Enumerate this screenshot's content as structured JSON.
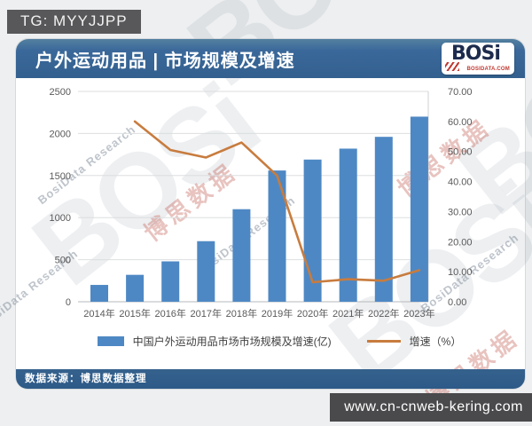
{
  "badges": {
    "tg": "TG: MYYJJPP",
    "site": "www.cn-cnweb-kering.com"
  },
  "header": {
    "title": "户外运动用品 | 市场规模及增速",
    "logo": {
      "text": "BOSi",
      "sub": "BOSIDATA.COM"
    }
  },
  "footer": {
    "source": "数据来源：博思数据整理"
  },
  "watermark": {
    "brand": "BOSi",
    "cn": "博思数据",
    "en": "BosiData Research"
  },
  "chart_data": {
    "type": "bar",
    "subtype": "bar+line dual axis",
    "title": "户外运动用品 | 市场规模及增速",
    "categories": [
      "2014年",
      "2015年",
      "2016年",
      "2017年",
      "2018年",
      "2019年",
      "2020年",
      "2021年",
      "2022年",
      "2023年"
    ],
    "series": [
      {
        "name": "中国户外运动用品市场市场规模及增速(亿)",
        "type": "bar",
        "axis": "left",
        "color": "#4e88c4",
        "values": [
          200,
          320,
          480,
          720,
          1100,
          1560,
          1690,
          1820,
          1960,
          2200
        ]
      },
      {
        "name": "增速（%）",
        "type": "line",
        "axis": "right",
        "color": "#c87c3e",
        "values": [
          null,
          60,
          50.5,
          48,
          53,
          42,
          6.5,
          7.5,
          7,
          10.5
        ]
      }
    ],
    "left_axis": {
      "min": 0,
      "max": 2500,
      "ticks": [
        0,
        500,
        1000,
        1500,
        2000,
        2500
      ]
    },
    "right_axis": {
      "min": 0,
      "max": 70,
      "ticks": [
        0,
        10,
        20,
        30,
        40,
        50,
        60,
        70
      ],
      "decimals": 2
    },
    "grid": true,
    "legend_position": "bottom"
  }
}
